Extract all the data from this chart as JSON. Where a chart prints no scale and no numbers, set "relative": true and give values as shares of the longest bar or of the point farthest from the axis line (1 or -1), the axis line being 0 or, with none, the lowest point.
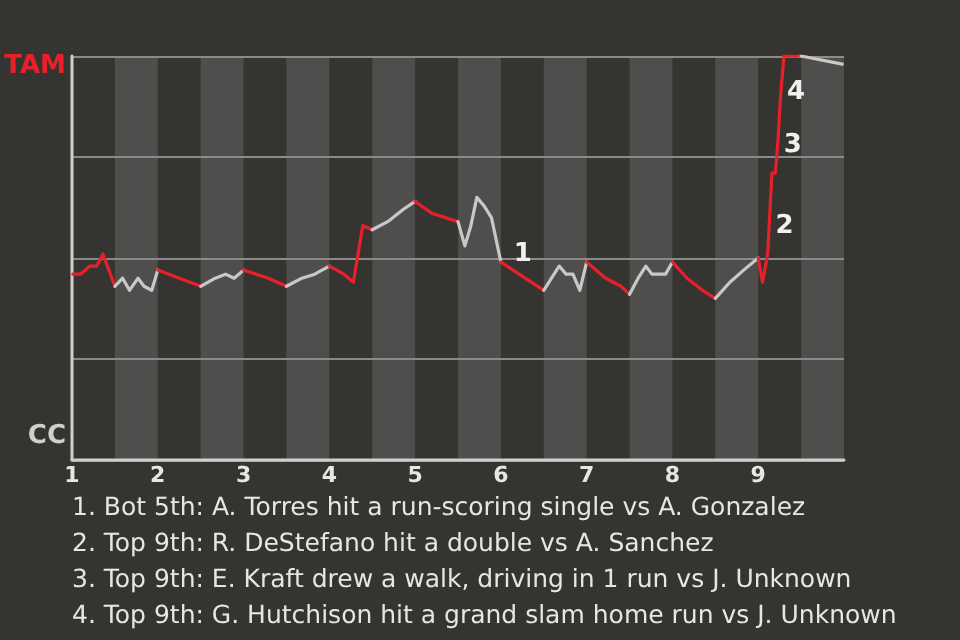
{
  "chart_data": {
    "type": "line",
    "relative": true,
    "xlim": [
      1,
      10
    ],
    "xticks": [
      1,
      2,
      3,
      4,
      5,
      6,
      7,
      8,
      9
    ],
    "grid": "y",
    "marker": "none",
    "line_style": "solid",
    "series": [
      {
        "color": "#e8202a",
        "x": [
          1.01,
          1.1,
          1.21,
          1.29,
          1.36,
          1.5
        ],
        "values": [
          0.46,
          0.46,
          0.48,
          0.48,
          0.51,
          0.43
        ]
      },
      {
        "color": "#c8c8c8",
        "x": [
          1.5,
          1.59,
          1.67,
          1.77,
          1.84,
          1.93,
          2.0
        ],
        "values": [
          0.43,
          0.45,
          0.42,
          0.45,
          0.43,
          0.42,
          0.47
        ]
      },
      {
        "color": "#e8202a",
        "x": [
          2.0,
          2.25,
          2.5
        ],
        "values": [
          0.47,
          0.45,
          0.43
        ]
      },
      {
        "color": "#c8c8c8",
        "x": [
          2.5,
          2.67,
          2.79,
          2.89,
          3.0
        ],
        "values": [
          0.43,
          0.45,
          0.46,
          0.45,
          0.47
        ]
      },
      {
        "color": "#e8202a",
        "x": [
          3.0,
          3.29,
          3.5
        ],
        "values": [
          0.47,
          0.45,
          0.43
        ]
      },
      {
        "color": "#c8c8c8",
        "x": [
          3.5,
          3.68,
          3.83,
          4.0
        ],
        "values": [
          0.43,
          0.45,
          0.46,
          0.48
        ]
      },
      {
        "color": "#e8202a",
        "x": [
          4.0,
          4.17,
          4.28,
          4.39,
          4.5
        ],
        "values": [
          0.48,
          0.46,
          0.44,
          0.58,
          0.57
        ]
      },
      {
        "color": "#c8c8c8",
        "x": [
          4.5,
          4.68,
          4.86,
          5.0
        ],
        "values": [
          0.57,
          0.59,
          0.62,
          0.64
        ]
      },
      {
        "color": "#e8202a",
        "x": [
          5.0,
          5.2,
          5.5
        ],
        "values": [
          0.64,
          0.61,
          0.59
        ]
      },
      {
        "color": "#c8c8c8",
        "x": [
          5.5,
          5.58,
          5.65,
          5.72,
          5.8,
          5.89,
          6.0
        ],
        "values": [
          0.59,
          0.53,
          0.58,
          0.65,
          0.63,
          0.6,
          0.49
        ]
      },
      {
        "color": "#e8202a",
        "x": [
          6.0,
          6.5
        ],
        "values": [
          0.49,
          0.42
        ]
      },
      {
        "color": "#c8c8c8",
        "x": [
          6.5,
          6.59,
          6.68,
          6.76,
          6.84,
          6.92,
          7.0
        ],
        "values": [
          0.42,
          0.45,
          0.48,
          0.46,
          0.46,
          0.42,
          0.49
        ]
      },
      {
        "color": "#e8202a",
        "x": [
          7.0,
          7.22,
          7.4,
          7.5
        ],
        "values": [
          0.49,
          0.45,
          0.43,
          0.41
        ]
      },
      {
        "color": "#c8c8c8",
        "x": [
          7.5,
          7.6,
          7.69,
          7.76,
          7.92,
          8.0
        ],
        "values": [
          0.41,
          0.45,
          0.48,
          0.46,
          0.46,
          0.49
        ]
      },
      {
        "color": "#e8202a",
        "x": [
          8.0,
          8.17,
          8.35,
          8.5
        ],
        "values": [
          0.49,
          0.45,
          0.42,
          0.4
        ]
      },
      {
        "color": "#c8c8c8",
        "x": [
          8.5,
          8.67,
          8.83,
          9.0
        ],
        "values": [
          0.4,
          0.44,
          0.47,
          0.5
        ]
      },
      {
        "color": "#e8202a",
        "x": [
          9.0,
          9.05,
          9.11,
          9.16,
          9.2,
          9.23,
          9.26,
          9.3,
          9.5
        ],
        "values": [
          0.5,
          0.44,
          0.51,
          0.71,
          0.71,
          0.79,
          0.9,
          1.0,
          1.0
        ]
      },
      {
        "color": "#c8c8c8",
        "x": [
          9.5,
          9.98
        ],
        "values": [
          1.0,
          0.98
        ]
      }
    ],
    "bands": [
      {
        "axis": "x",
        "from": 1.5,
        "to": 2,
        "color": "#4f4e4c"
      },
      {
        "axis": "x",
        "from": 2.5,
        "to": 3,
        "color": "#4f4e4c"
      },
      {
        "axis": "x",
        "from": 3.5,
        "to": 4,
        "color": "#4f4e4c"
      },
      {
        "axis": "x",
        "from": 4.5,
        "to": 5,
        "color": "#4f4e4c"
      },
      {
        "axis": "x",
        "from": 5.5,
        "to": 6,
        "color": "#4f4e4c"
      },
      {
        "axis": "x",
        "from": 6.5,
        "to": 7,
        "color": "#4f4e4c"
      },
      {
        "axis": "x",
        "from": 7.5,
        "to": 8,
        "color": "#4f4e4c"
      },
      {
        "axis": "x",
        "from": 8.5,
        "to": 9,
        "color": "#4f4e4c"
      },
      {
        "axis": "x",
        "from": 9.5,
        "to": 10,
        "color": "#4f4e4c"
      }
    ],
    "annotations": [
      "TAM",
      "CC",
      {
        "text": "1",
        "x": 6.07,
        "y": 0.48
      },
      {
        "text": "2",
        "x": 9.12,
        "y": 0.55
      },
      {
        "text": "3",
        "x": 9.215,
        "y": 0.75
      },
      {
        "text": "4",
        "x": 9.255,
        "y": 0.88
      },
      "1. Bot 5th: A. Torres hit a run-scoring single vs A. Gonzalez",
      "2. Top 9th: R. DeStefano hit a double vs A. Sanchez",
      "3. Top 9th: E. Kraft drew a walk, driving in 1 run vs J. Unknown",
      "4. Top 9th: G. Hutchison hit a grand slam home run vs J. Unknown"
    ]
  }
}
